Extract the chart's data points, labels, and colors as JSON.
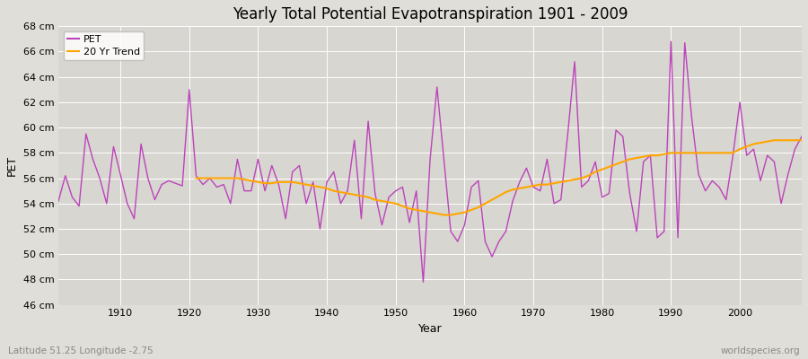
{
  "title": "Yearly Total Potential Evapotranspiration 1901 - 2009",
  "ylabel": "PET",
  "xlabel": "Year",
  "subtitle_left": "Latitude 51.25 Longitude -2.75",
  "subtitle_right": "worldspecies.org",
  "pet_color": "#BB44BB",
  "trend_color": "#FFA500",
  "background_color": "#E0DED8",
  "plot_bg_color": "#D8D6D0",
  "grid_color": "#FFFFFF",
  "ylim": [
    46,
    68
  ],
  "ytick_labels": [
    "46 cm",
    "48 cm",
    "50 cm",
    "52 cm",
    "54 cm",
    "56 cm",
    "58 cm",
    "60 cm",
    "62 cm",
    "64 cm",
    "66 cm",
    "68 cm"
  ],
  "ytick_values": [
    46,
    48,
    50,
    52,
    54,
    56,
    58,
    60,
    62,
    64,
    66,
    68
  ],
  "years": [
    1901,
    1902,
    1903,
    1904,
    1905,
    1906,
    1907,
    1908,
    1909,
    1910,
    1911,
    1912,
    1913,
    1914,
    1915,
    1916,
    1917,
    1918,
    1919,
    1920,
    1921,
    1922,
    1923,
    1924,
    1925,
    1926,
    1927,
    1928,
    1929,
    1930,
    1931,
    1932,
    1933,
    1934,
    1935,
    1936,
    1937,
    1938,
    1939,
    1940,
    1941,
    1942,
    1943,
    1944,
    1945,
    1946,
    1947,
    1948,
    1949,
    1950,
    1951,
    1952,
    1953,
    1954,
    1955,
    1956,
    1957,
    1958,
    1959,
    1960,
    1961,
    1962,
    1963,
    1964,
    1965,
    1966,
    1967,
    1968,
    1969,
    1970,
    1971,
    1972,
    1973,
    1974,
    1975,
    1976,
    1977,
    1978,
    1979,
    1980,
    1981,
    1982,
    1983,
    1984,
    1985,
    1986,
    1987,
    1988,
    1989,
    1990,
    1991,
    1992,
    1993,
    1994,
    1995,
    1996,
    1997,
    1998,
    1999,
    2000,
    2001,
    2002,
    2003,
    2004,
    2005,
    2006,
    2007,
    2008,
    2009
  ],
  "pet_values": [
    54.2,
    56.2,
    54.5,
    53.8,
    59.5,
    57.5,
    56.0,
    54.0,
    58.5,
    56.3,
    54.0,
    52.8,
    58.7,
    56.0,
    54.3,
    55.5,
    55.8,
    55.6,
    55.4,
    63.0,
    56.2,
    55.5,
    56.0,
    55.3,
    55.5,
    54.0,
    57.5,
    55.0,
    55.0,
    57.5,
    55.0,
    57.0,
    55.5,
    52.8,
    56.5,
    57.0,
    54.0,
    55.7,
    52.0,
    55.7,
    56.5,
    54.0,
    55.0,
    59.0,
    52.8,
    60.5,
    54.8,
    52.3,
    54.5,
    55.0,
    55.3,
    52.5,
    55.0,
    47.8,
    57.5,
    63.2,
    57.5,
    51.8,
    51.0,
    52.3,
    55.3,
    55.8,
    51.0,
    49.8,
    51.0,
    51.8,
    54.2,
    55.7,
    56.8,
    55.3,
    55.0,
    57.5,
    54.0,
    54.3,
    59.5,
    65.2,
    55.3,
    55.8,
    57.3,
    54.5,
    54.8,
    59.8,
    59.3,
    54.8,
    51.8,
    57.3,
    57.8,
    51.3,
    51.8,
    66.8,
    51.3,
    66.7,
    60.8,
    56.3,
    55.0,
    55.8,
    55.3,
    54.3,
    57.8,
    62.0,
    57.8,
    58.3,
    55.8,
    57.8,
    57.3,
    54.0,
    56.3,
    58.3,
    59.3
  ],
  "trend_values_years": [
    1921,
    1922,
    1923,
    1924,
    1925,
    1926,
    1927,
    1928,
    1929,
    1930,
    1931,
    1932,
    1933,
    1934,
    1935,
    1936,
    1937,
    1938,
    1939,
    1940,
    1941,
    1942,
    1943,
    1944,
    1945,
    1946,
    1947,
    1948,
    1949,
    1950,
    1951,
    1952,
    1953,
    1954,
    1955,
    1956,
    1957,
    1958,
    1959,
    1960,
    1961,
    1962,
    1963,
    1964,
    1965,
    1966,
    1967,
    1968,
    1969,
    1970,
    1971,
    1972,
    1973,
    1974,
    1975,
    1976,
    1977,
    1978,
    1979,
    1980,
    1981,
    1982,
    1983,
    1984,
    1985,
    1986,
    1987,
    1988,
    1989,
    1990,
    1991,
    1992,
    1993,
    1994,
    1995,
    1996,
    1997,
    1998,
    1999,
    2000,
    2001,
    2002,
    2003,
    2004,
    2005,
    2006,
    2007,
    2008,
    2009
  ],
  "trend_values": [
    56.0,
    56.0,
    56.0,
    56.0,
    56.0,
    56.0,
    56.0,
    55.9,
    55.8,
    55.7,
    55.6,
    55.6,
    55.7,
    55.7,
    55.7,
    55.6,
    55.5,
    55.4,
    55.3,
    55.2,
    55.0,
    54.9,
    54.8,
    54.7,
    54.6,
    54.5,
    54.3,
    54.2,
    54.1,
    54.0,
    53.8,
    53.6,
    53.5,
    53.4,
    53.3,
    53.2,
    53.1,
    53.1,
    53.2,
    53.3,
    53.5,
    53.7,
    54.0,
    54.3,
    54.6,
    54.9,
    55.1,
    55.2,
    55.3,
    55.4,
    55.5,
    55.5,
    55.6,
    55.7,
    55.8,
    55.9,
    56.0,
    56.2,
    56.5,
    56.7,
    56.9,
    57.1,
    57.3,
    57.5,
    57.6,
    57.7,
    57.8,
    57.8,
    57.9,
    58.0,
    58.0,
    58.0,
    58.0,
    58.0,
    58.0,
    58.0,
    58.0,
    58.0,
    58.0,
    58.3,
    58.5,
    58.7,
    58.8,
    58.9,
    59.0,
    59.0,
    59.0,
    59.0,
    59.0
  ]
}
